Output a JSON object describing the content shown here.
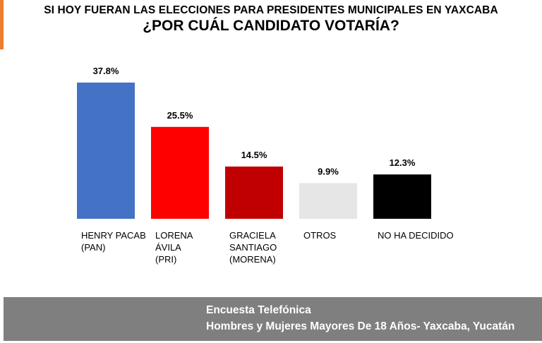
{
  "title": {
    "line1": "SI HOY FUERAN LAS ELECCIONES PARA PRESIDENTES MUNICIPALES EN YAXCABA",
    "line2": "¿POR CUÁL CANDIDATO VOTARÍA?"
  },
  "colors": {
    "accent": "#ed7d31",
    "footer_bg": "#7f7f7f"
  },
  "chart_data": {
    "type": "bar",
    "categories": [
      [
        "HENRY PACAB",
        "(PAN)"
      ],
      [
        "LORENA",
        "ÁVILA",
        "(PRI)"
      ],
      [
        "GRACIELA",
        "SANTIAGO",
        "(MORENA)"
      ],
      [
        "OTROS"
      ],
      [
        "NO HA DECIDIDO"
      ]
    ],
    "values": [
      37.8,
      25.5,
      14.5,
      9.9,
      12.3
    ],
    "value_labels": [
      "37.8%",
      "25.5%",
      "14.5%",
      "9.9%",
      "12.3%"
    ],
    "colors": [
      "#4472c4",
      "#ff0000",
      "#c00000",
      "#e7e6e6",
      "#000000"
    ],
    "ylim": [
      0,
      37.8
    ],
    "grid": false,
    "legend": "none"
  },
  "footer": {
    "line1": "Encuesta Telefónica",
    "line2": "Hombres y Mujeres Mayores De 18 Años- Yaxcaba, Yucatán"
  }
}
